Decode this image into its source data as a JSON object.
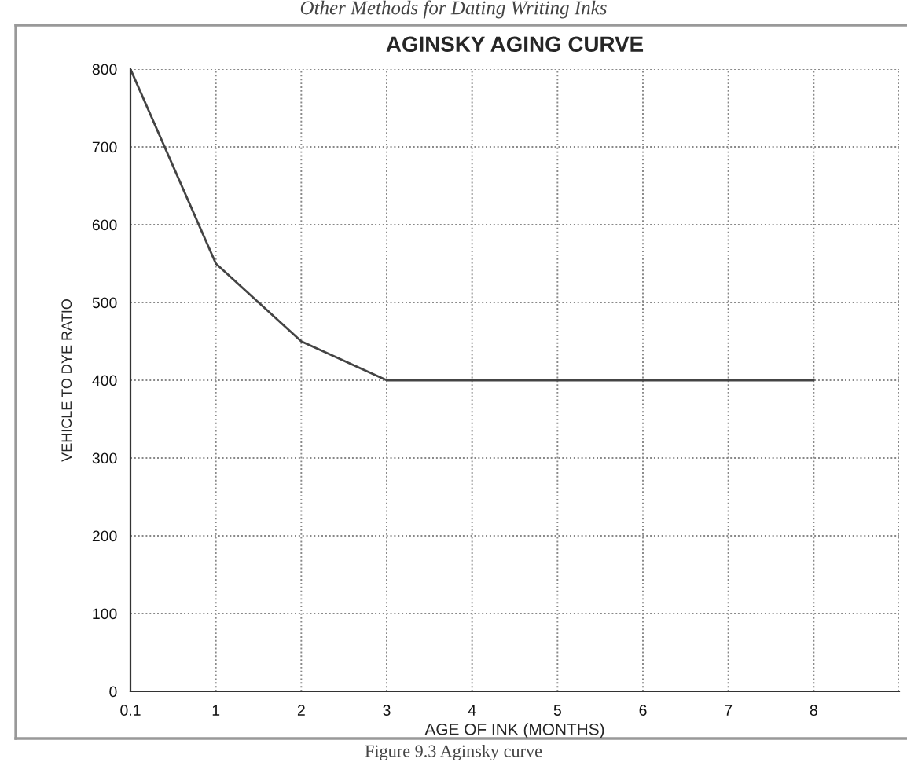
{
  "chart_data": {
    "type": "line",
    "title": "AGINSKY AGING CURVE",
    "xlabel": "AGE OF INK (MONTHS)",
    "ylabel": "VEHICLE TO DYE RATIO",
    "categories": [
      "0.1",
      "1",
      "2",
      "3",
      "4",
      "5",
      "6",
      "7",
      "8",
      null
    ],
    "series": [
      {
        "color": "#444444",
        "values": [
          800,
          550,
          450,
          400,
          400,
          400,
          400,
          400,
          400,
          null
        ]
      }
    ],
    "ylim": [
      0,
      800
    ],
    "yticks": [
      0,
      100,
      200,
      300,
      400,
      500,
      600,
      700,
      800
    ],
    "grid": true,
    "marker": "none",
    "line_style": "solid",
    "annotations": [
      "Other Methods for Dating Writing Inks",
      "Figure 9.3 Aginsky curve"
    ]
  }
}
